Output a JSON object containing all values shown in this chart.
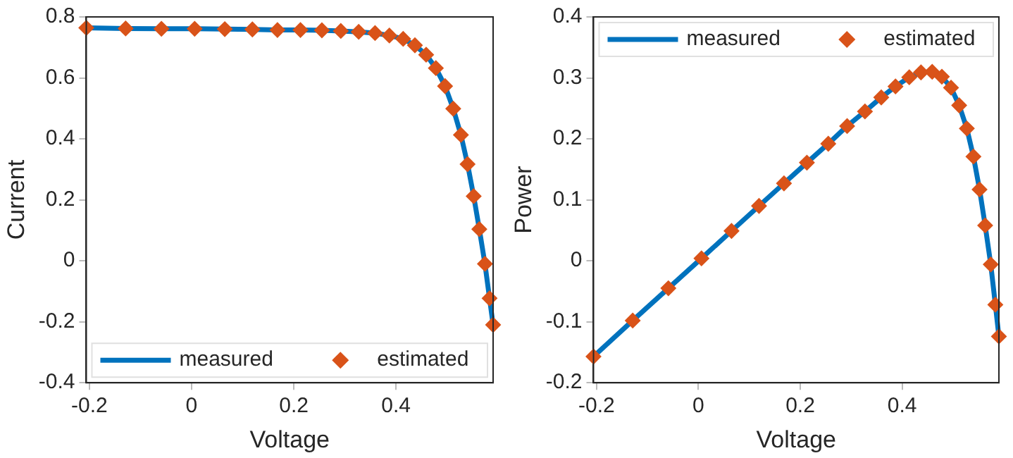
{
  "chart_data": [
    {
      "type": "line",
      "xlabel": "Voltage",
      "ylabel": "Current",
      "xlim": [
        -0.206,
        0.59
      ],
      "xticks": [
        -0.2,
        0,
        0.2,
        0.4
      ],
      "ylim": [
        -0.4,
        0.8
      ],
      "yticks": [
        -0.4,
        -0.2,
        0,
        0.2,
        0.4,
        0.6,
        0.8
      ],
      "grid": false,
      "legend": "bottom",
      "x": [
        -0.206,
        -0.129,
        -0.059,
        0.006,
        0.065,
        0.119,
        0.168,
        0.213,
        0.255,
        0.292,
        0.327,
        0.359,
        0.387,
        0.414,
        0.437,
        0.459,
        0.478,
        0.496,
        0.512,
        0.527,
        0.54,
        0.552,
        0.563,
        0.574,
        0.583,
        0.59
      ],
      "series": [
        {
          "name": "measured",
          "type": "line",
          "color": "#0072bd",
          "marker": "none",
          "line_style": "solid",
          "values": [
            0.764,
            0.762,
            0.761,
            0.761,
            0.76,
            0.759,
            0.757,
            0.757,
            0.756,
            0.754,
            0.751,
            0.747,
            0.739,
            0.728,
            0.707,
            0.676,
            0.632,
            0.573,
            0.499,
            0.413,
            0.317,
            0.212,
            0.104,
            -0.01,
            -0.123,
            -0.21
          ]
        },
        {
          "name": "estimated",
          "type": "scatter",
          "color": "#d95319",
          "marker": "diamond",
          "values": [
            0.764,
            0.762,
            0.761,
            0.761,
            0.76,
            0.759,
            0.757,
            0.757,
            0.756,
            0.754,
            0.751,
            0.747,
            0.739,
            0.728,
            0.707,
            0.676,
            0.632,
            0.573,
            0.499,
            0.413,
            0.317,
            0.212,
            0.104,
            -0.01,
            -0.123,
            -0.21
          ]
        }
      ]
    },
    {
      "type": "line",
      "xlabel": "Voltage",
      "ylabel": "Power",
      "xlim": [
        -0.206,
        0.59
      ],
      "xticks": [
        -0.2,
        0,
        0.2,
        0.4
      ],
      "ylim": [
        -0.2,
        0.4
      ],
      "yticks": [
        -0.2,
        -0.1,
        0,
        0.1,
        0.2,
        0.3,
        0.4
      ],
      "grid": false,
      "legend": "top",
      "x": [
        -0.206,
        -0.129,
        -0.059,
        0.006,
        0.065,
        0.119,
        0.168,
        0.213,
        0.255,
        0.292,
        0.327,
        0.359,
        0.387,
        0.414,
        0.437,
        0.459,
        0.478,
        0.496,
        0.512,
        0.527,
        0.54,
        0.552,
        0.563,
        0.574,
        0.583,
        0.59
      ],
      "series": [
        {
          "name": "measured",
          "type": "line",
          "color": "#0072bd",
          "marker": "none",
          "line_style": "solid",
          "values": [
            -0.157,
            -0.098,
            -0.045,
            0.004,
            0.049,
            0.09,
            0.127,
            0.161,
            0.192,
            0.221,
            0.245,
            0.268,
            0.286,
            0.301,
            0.309,
            0.31,
            0.302,
            0.284,
            0.255,
            0.217,
            0.171,
            0.117,
            0.058,
            -0.006,
            -0.072,
            -0.124
          ]
        },
        {
          "name": "estimated",
          "type": "scatter",
          "color": "#d95319",
          "marker": "diamond",
          "values": [
            -0.157,
            -0.098,
            -0.045,
            0.004,
            0.049,
            0.09,
            0.127,
            0.161,
            0.192,
            0.221,
            0.245,
            0.268,
            0.286,
            0.301,
            0.309,
            0.31,
            0.302,
            0.284,
            0.255,
            0.217,
            0.171,
            0.117,
            0.058,
            -0.006,
            -0.072,
            -0.124
          ]
        }
      ]
    }
  ]
}
